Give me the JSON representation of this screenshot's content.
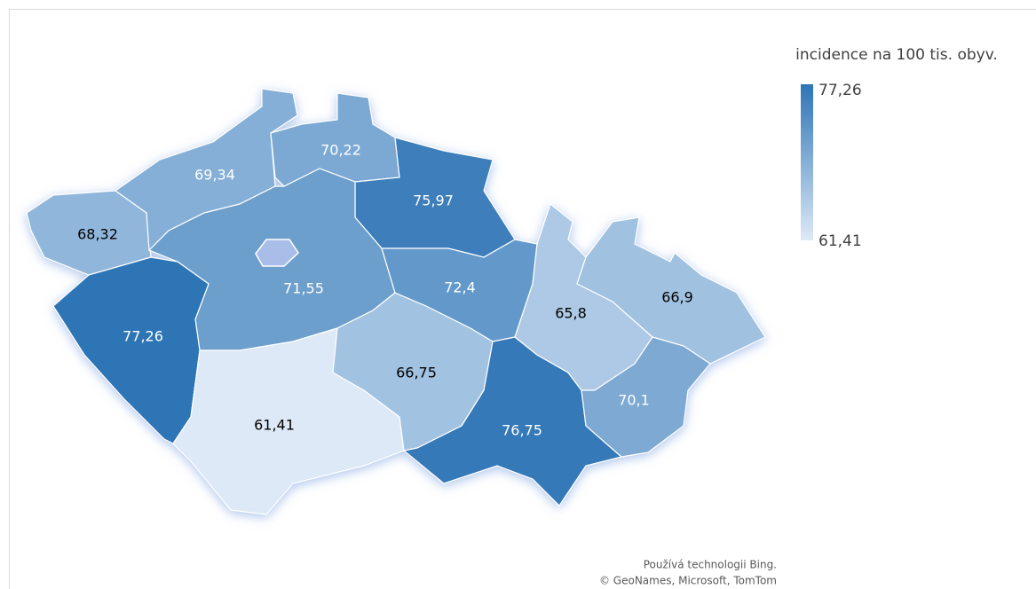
{
  "chart_data": {
    "type": "choropleth",
    "legend_title": "incidence na 100 tis. obyv.",
    "values": [
      68.32,
      69.34,
      70.22,
      75.97,
      71.55,
      77.26,
      61.41,
      66.75,
      72.4,
      76.75,
      65.8,
      66.9,
      70.1
    ],
    "value_labels": [
      "68,32",
      "69,34",
      "70,22",
      "75,97",
      "71,55",
      "77,26",
      "61,41",
      "66,75",
      "72,4",
      "76,75",
      "65,8",
      "66,9",
      "70,1"
    ],
    "color_scale": {
      "min": {
        "value": 61.41,
        "label": "61,41"
      },
      "max": {
        "value": 77.26,
        "label": "77,26"
      },
      "colors": [
        "#dde9f7",
        "#2e75b6"
      ]
    },
    "attribution": [
      "Používá technologii Bing.",
      "© GeoNames, Microsoft, TomTom"
    ]
  }
}
